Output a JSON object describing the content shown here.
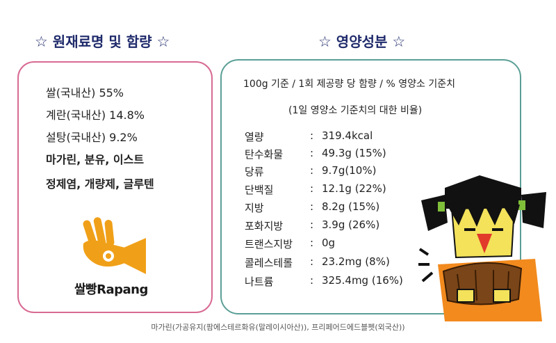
{
  "headings": {
    "ingredients": "원재료명 및 함량",
    "nutrition": "영양성분",
    "star": "☆"
  },
  "ingredients": [
    "쌀(국내산) 55%",
    "계란(국내산) 14.8%",
    "설탕(국내산) 9.2%",
    "마가린, 분유, 이스트",
    "정제염, 개량제, 글루텐"
  ],
  "logo": {
    "text": "쌀빵Rapang",
    "icon": "hand-horn-logo-icon",
    "color": "#f0a018"
  },
  "nutrition": {
    "basis": "100g 기준 / 1회 제공량 당 함량 / % 영양소 기준치",
    "basis_note": "(1일 영양소 기준치의 대한 비율)",
    "rows": [
      {
        "label": "열량",
        "value": "319.4kcal"
      },
      {
        "label": "탄수화물",
        "value": "49.3g (15%)"
      },
      {
        "label": "당류",
        "value": "9.7g(10%)"
      },
      {
        "label": "단백질",
        "value": "12.1g (22%)"
      },
      {
        "label": "지방",
        "value": "8.2g (15%)"
      },
      {
        "label": "포화지방",
        "value": "3.9g (26%)"
      },
      {
        "label": "트랜스지방",
        "value": "0g"
      },
      {
        "label": "콜레스테롤",
        "value": "23.2mg (8%)"
      },
      {
        "label": "나트륨",
        "value": "325.4mg (16%)"
      }
    ],
    "colon": ":"
  },
  "footer": "마가린(가공유지(팜에스테르화유(말레이시아산)), 프리페어드에드블펫(외국산))",
  "colors": {
    "heading": "#1f2a6b",
    "left_border": "#d86a93",
    "right_border": "#5a9f96"
  }
}
